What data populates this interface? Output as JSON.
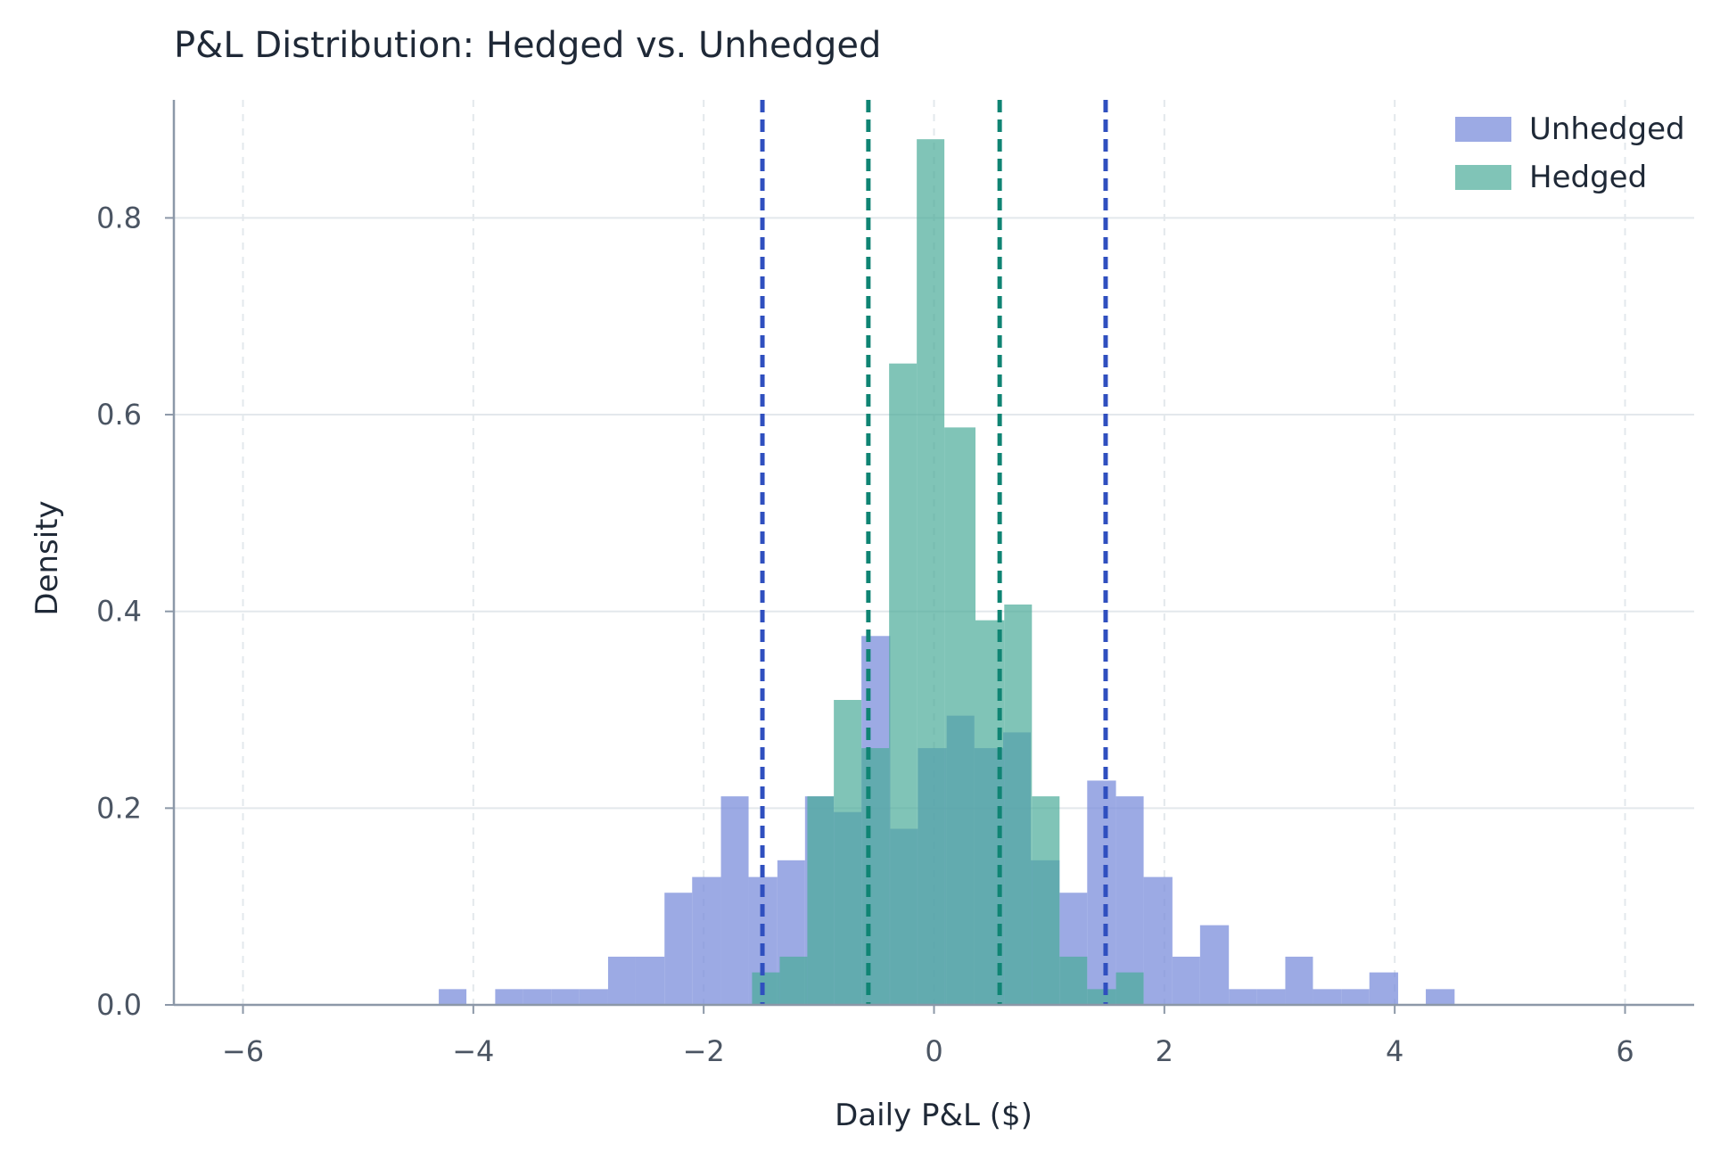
{
  "chart_data": {
    "type": "histogram",
    "title": "P&L Distribution: Hedged vs. Unhedged",
    "xlabel": "Daily P&L ($)",
    "ylabel": "Density",
    "xlim": [
      -6.6,
      6.6
    ],
    "ylim": [
      0,
      0.92
    ],
    "xticks": [
      -6,
      -4,
      -2,
      0,
      2,
      4,
      6
    ],
    "xtick_labels": [
      "−6",
      "−4",
      "−2",
      "0",
      "2",
      "4",
      "6"
    ],
    "yticks": [
      0.0,
      0.2,
      0.4,
      0.6,
      0.8
    ],
    "ytick_labels": [
      "0.0",
      "0.2",
      "0.4",
      "0.6",
      "0.8"
    ],
    "grid": true,
    "legend_position": "top-right",
    "series": [
      {
        "name": "Unhedged",
        "color": "#7b8ddb",
        "opacity": 0.75,
        "bins": [
          {
            "x0": -4.3,
            "x1": -4.06,
            "density": 0.016
          },
          {
            "x0": -3.81,
            "x1": -3.57,
            "density": 0.016
          },
          {
            "x0": -3.57,
            "x1": -3.32,
            "density": 0.016
          },
          {
            "x0": -3.32,
            "x1": -3.08,
            "density": 0.016
          },
          {
            "x0": -3.08,
            "x1": -2.83,
            "density": 0.016
          },
          {
            "x0": -2.83,
            "x1": -2.59,
            "density": 0.049
          },
          {
            "x0": -2.59,
            "x1": -2.34,
            "density": 0.049
          },
          {
            "x0": -2.34,
            "x1": -2.1,
            "density": 0.114
          },
          {
            "x0": -2.1,
            "x1": -1.85,
            "density": 0.13
          },
          {
            "x0": -1.85,
            "x1": -1.61,
            "density": 0.212
          },
          {
            "x0": -1.61,
            "x1": -1.36,
            "density": 0.13
          },
          {
            "x0": -1.36,
            "x1": -1.12,
            "density": 0.147
          },
          {
            "x0": -1.12,
            "x1": -0.87,
            "density": 0.212
          },
          {
            "x0": -0.87,
            "x1": -0.63,
            "density": 0.196
          },
          {
            "x0": -0.63,
            "x1": -0.38,
            "density": 0.375
          },
          {
            "x0": -0.38,
            "x1": -0.14,
            "density": 0.179
          },
          {
            "x0": -0.14,
            "x1": 0.11,
            "density": 0.261
          },
          {
            "x0": 0.11,
            "x1": 0.35,
            "density": 0.294
          },
          {
            "x0": 0.35,
            "x1": 0.6,
            "density": 0.261
          },
          {
            "x0": 0.6,
            "x1": 0.84,
            "density": 0.277
          },
          {
            "x0": 0.84,
            "x1": 1.09,
            "density": 0.147
          },
          {
            "x0": 1.09,
            "x1": 1.33,
            "density": 0.114
          },
          {
            "x0": 1.33,
            "x1": 1.58,
            "density": 0.228
          },
          {
            "x0": 1.58,
            "x1": 1.82,
            "density": 0.212
          },
          {
            "x0": 1.82,
            "x1": 2.07,
            "density": 0.13
          },
          {
            "x0": 2.07,
            "x1": 2.31,
            "density": 0.049
          },
          {
            "x0": 2.31,
            "x1": 2.56,
            "density": 0.081
          },
          {
            "x0": 2.56,
            "x1": 2.8,
            "density": 0.016
          },
          {
            "x0": 2.8,
            "x1": 3.05,
            "density": 0.016
          },
          {
            "x0": 3.05,
            "x1": 3.29,
            "density": 0.049
          },
          {
            "x0": 3.29,
            "x1": 3.54,
            "density": 0.016
          },
          {
            "x0": 3.54,
            "x1": 3.78,
            "density": 0.016
          },
          {
            "x0": 3.78,
            "x1": 4.03,
            "density": 0.033
          },
          {
            "x0": 4.27,
            "x1": 4.52,
            "density": 0.016
          }
        ],
        "vlines": [
          -1.49,
          1.49
        ]
      },
      {
        "name": "Hedged",
        "color": "#4aab98",
        "opacity": 0.7,
        "bins": [
          {
            "x0": -1.58,
            "x1": -1.34,
            "density": 0.033
          },
          {
            "x0": -1.34,
            "x1": -1.1,
            "density": 0.049
          },
          {
            "x0": -1.1,
            "x1": -0.87,
            "density": 0.212
          },
          {
            "x0": -0.87,
            "x1": -0.63,
            "density": 0.31
          },
          {
            "x0": -0.63,
            "x1": -0.39,
            "density": 0.261
          },
          {
            "x0": -0.39,
            "x1": -0.15,
            "density": 0.652
          },
          {
            "x0": -0.15,
            "x1": 0.09,
            "density": 0.88
          },
          {
            "x0": 0.09,
            "x1": 0.36,
            "density": 0.587
          },
          {
            "x0": 0.36,
            "x1": 0.61,
            "density": 0.391
          },
          {
            "x0": 0.61,
            "x1": 0.85,
            "density": 0.407
          },
          {
            "x0": 0.85,
            "x1": 1.09,
            "density": 0.212
          },
          {
            "x0": 1.09,
            "x1": 1.33,
            "density": 0.049
          },
          {
            "x0": 1.33,
            "x1": 1.58,
            "density": 0.016
          },
          {
            "x0": 1.58,
            "x1": 1.82,
            "density": 0.033
          }
        ],
        "vlines": [
          -0.57,
          0.57
        ]
      }
    ],
    "vline_colors": {
      "Unhedged": "#2f4fbf",
      "Hedged": "#0f8473"
    }
  }
}
